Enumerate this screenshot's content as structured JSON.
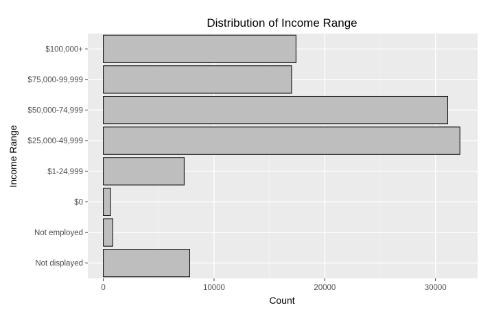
{
  "chart_data": {
    "type": "bar",
    "orientation": "horizontal",
    "title": "Distribution of Income Range",
    "xlabel": "Count",
    "ylabel": "Income Range",
    "categories": [
      "$100,000+",
      "$75,000-99,999",
      "$50,000-74,999",
      "$25,000-49,999",
      "$1-24,999",
      "$0",
      "Not employed",
      "Not displayed"
    ],
    "values": [
      17400,
      17000,
      31100,
      32200,
      7300,
      650,
      850,
      7800
    ],
    "xlim": [
      -1400,
      33800
    ],
    "xticks": [
      0,
      10000,
      20000,
      30000
    ],
    "xtick_labels": [
      "0",
      "10000",
      "20000",
      "30000"
    ],
    "grid": true,
    "legend": "none",
    "colors": {
      "bar_fill": "#bebebe",
      "bar_stroke": "#000000",
      "panel_bg": "#ebebeb",
      "grid_major": "#ffffff",
      "grid_minor": "#f5f5f5",
      "tick_text": "#4d4d4d"
    }
  }
}
